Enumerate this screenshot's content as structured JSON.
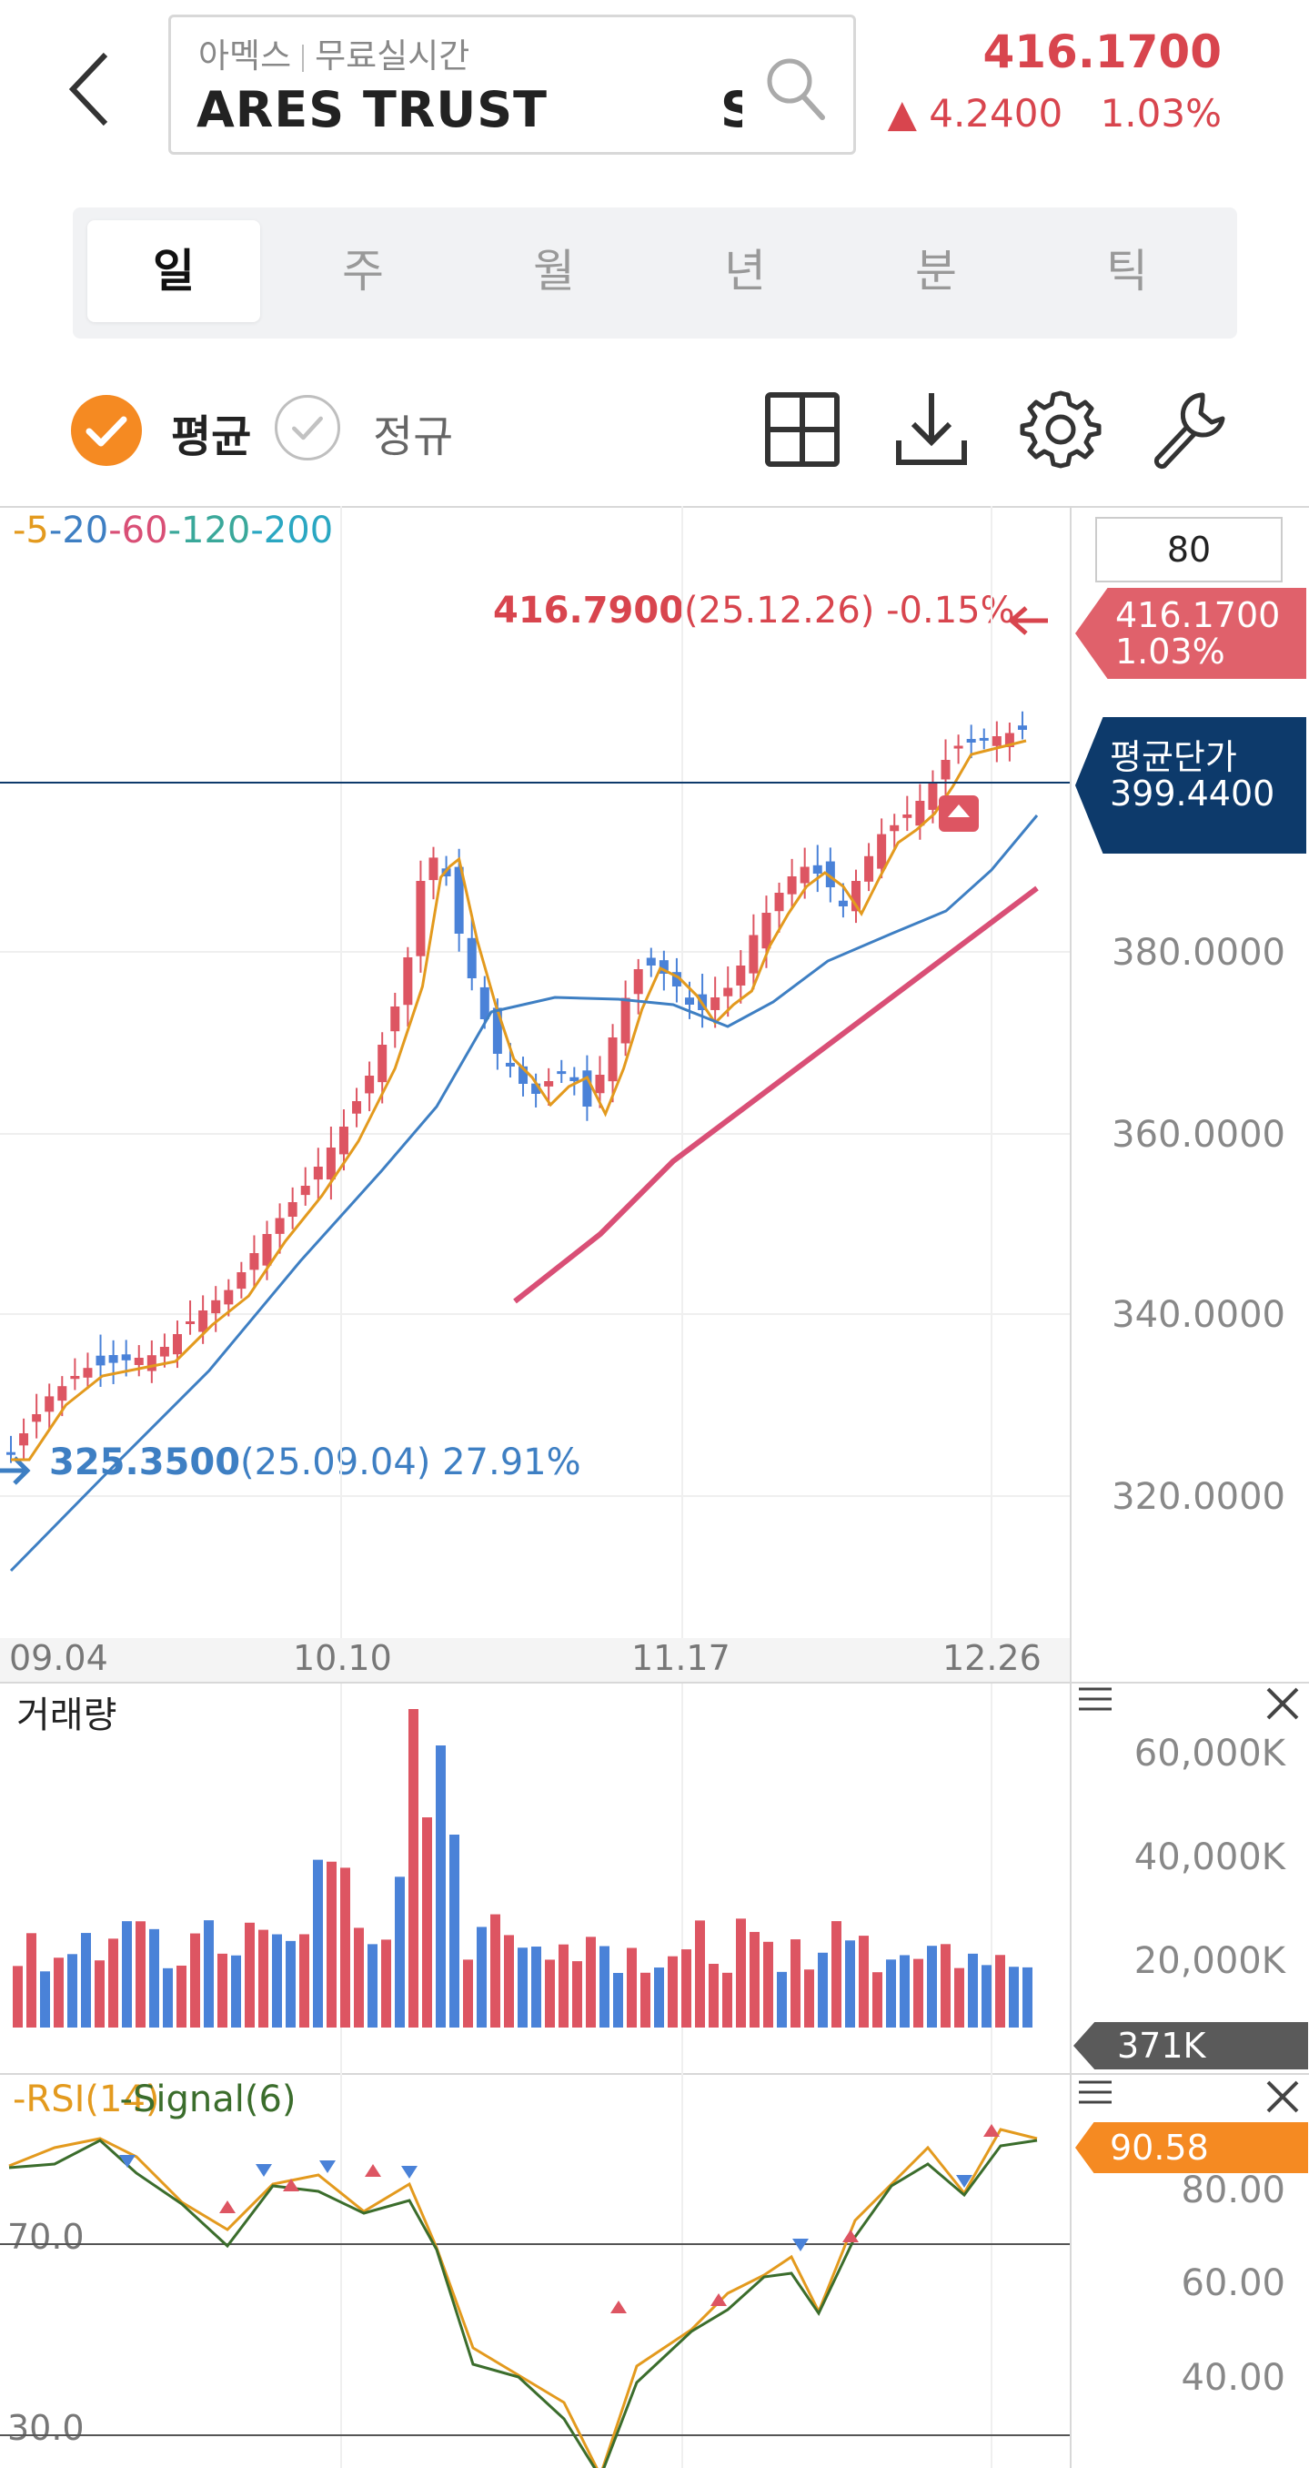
{
  "header": {
    "exchange": "아멕스",
    "feed": "무료실시간",
    "ticker_name": "ARES TRUST",
    "ticker_code": "SP",
    "price": "416.1700",
    "change_arrow": "▲",
    "change": "4.2400",
    "change_pct": "1.03%"
  },
  "tabs": [
    {
      "label": "일",
      "active": true
    },
    {
      "label": "주"
    },
    {
      "label": "월"
    },
    {
      "label": "년"
    },
    {
      "label": "분"
    },
    {
      "label": "틱"
    }
  ],
  "toolbar": {
    "average_label": "평균",
    "regular_label": "정규",
    "icons": [
      "grid-icon",
      "download-icon",
      "gear-icon",
      "wrench-icon"
    ]
  },
  "ma_legend": [
    "-5",
    "-20",
    "-60",
    "-120",
    "-200"
  ],
  "ma_colors": [
    "#e39a1e",
    "#3e7fc3",
    "#d94f76",
    "#3aa89a",
    "#2aa7c2"
  ],
  "candle_count_input": "80",
  "price_chart": {
    "high_label": {
      "price": "416.7900",
      "date": "(25.12.26)",
      "pct": "-0.15%"
    },
    "low_label": {
      "price": "325.3500",
      "date": "(25.09.04)",
      "pct": "27.91%"
    },
    "current_tag": {
      "price": "416.1700",
      "pct": "1.03%"
    },
    "avg_tag": {
      "label": "평균단가",
      "price": "399.4400"
    },
    "y_ticks": [
      "380.0000",
      "360.0000",
      "340.0000",
      "320.0000"
    ],
    "x_ticks": [
      "09.04",
      "10.10",
      "11.17",
      "12.26"
    ],
    "colors": {
      "up": "#dd5562",
      "down": "#4a82d8",
      "avg_line": "#0d3a6b"
    }
  },
  "volume": {
    "title": "거래량",
    "y_ticks": [
      "60,000K",
      "40,000K",
      "20,000K"
    ],
    "current_tag": "371K"
  },
  "rsi": {
    "title": "-RSI(14)",
    "signal": "-Signal(6)",
    "current_tag": "90.58",
    "y_ticks": [
      "80.00",
      "60.00",
      "40.00"
    ],
    "level_70": "70.0",
    "level_30": "30.0"
  }
}
